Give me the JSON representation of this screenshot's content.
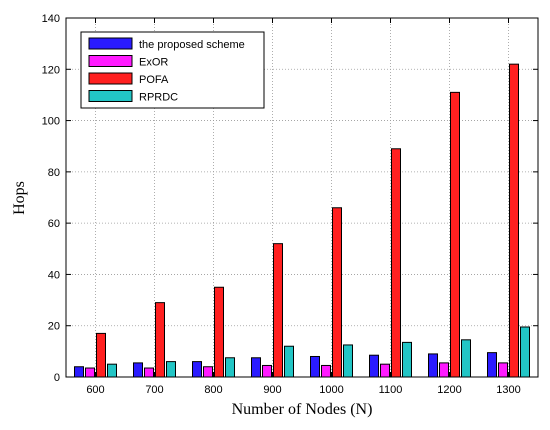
{
  "chart_data": {
    "type": "bar",
    "xlabel": "Number of Nodes (N)",
    "ylabel": "Hops",
    "categories": [
      "600",
      "700",
      "800",
      "900",
      "1000",
      "1100",
      "1200",
      "1300"
    ],
    "ylim": [
      0,
      140
    ],
    "yticks": [
      "0",
      "20",
      "40",
      "60",
      "80",
      "100",
      "120",
      "140"
    ],
    "grid": true,
    "grid_style": "dotted",
    "legend_position": "top-left",
    "series": [
      {
        "name": "the proposed scheme",
        "color": "#2a1bff",
        "values": [
          4,
          5.5,
          6,
          7.5,
          8,
          8.5,
          9,
          9.5
        ]
      },
      {
        "name": "ExOR",
        "color": "#ff1aff",
        "values": [
          3.5,
          3.5,
          4,
          4.5,
          4.5,
          5,
          5.5,
          5.5
        ]
      },
      {
        "name": "POFA",
        "color": "#ff2020",
        "values": [
          17,
          29,
          35,
          52,
          66,
          89,
          111,
          122
        ]
      },
      {
        "name": "RPRDC",
        "color": "#22c5c5",
        "values": [
          5,
          6,
          7.5,
          12,
          12.5,
          13.5,
          14.5,
          19.5
        ]
      }
    ]
  }
}
